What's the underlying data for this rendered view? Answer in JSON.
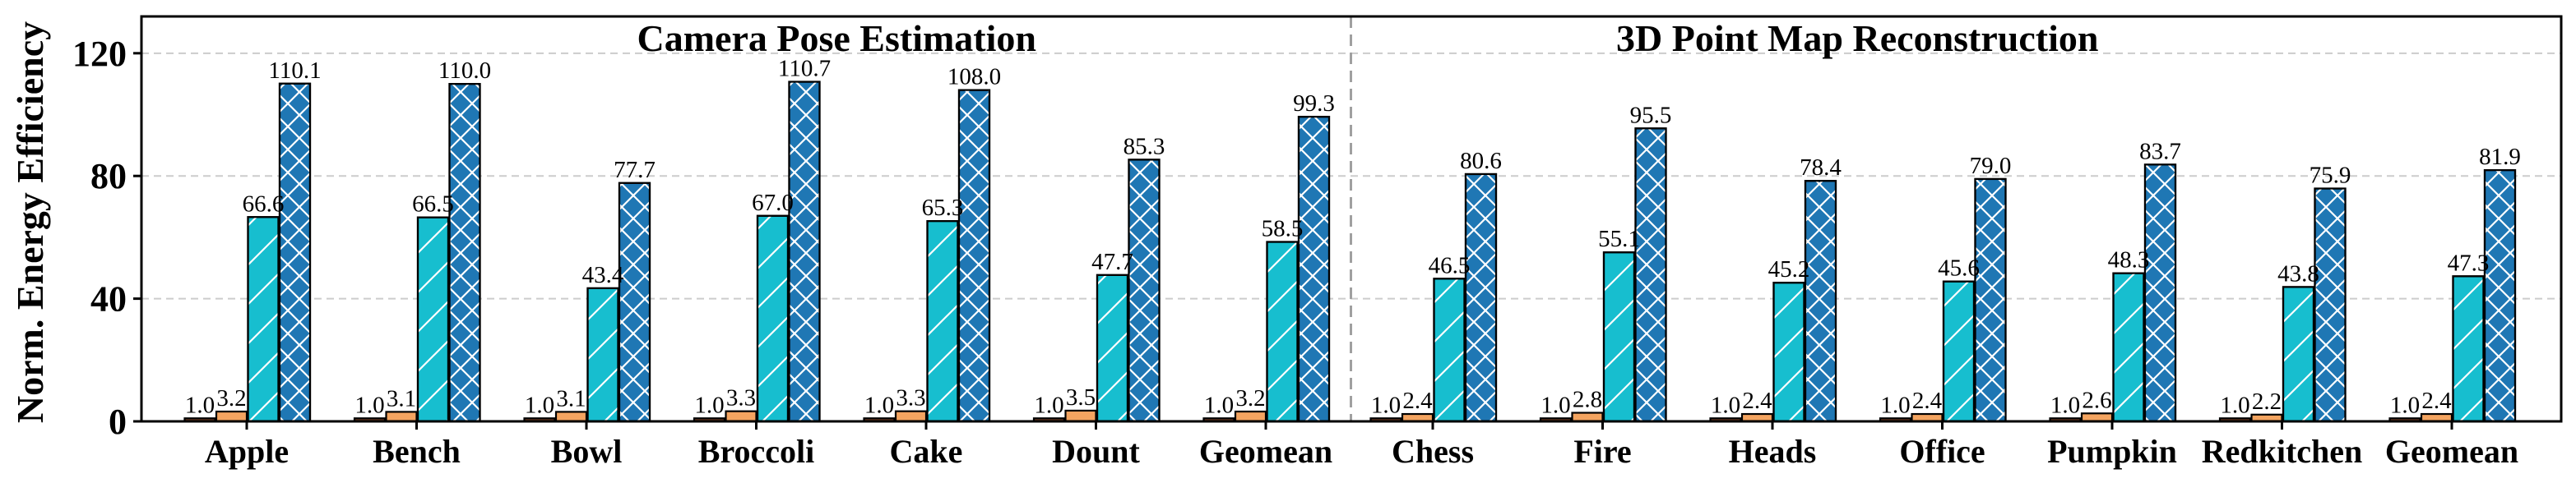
{
  "chart_data": {
    "type": "bar",
    "ylabel": "Norm. Energy Efficiency",
    "ylim": [
      0,
      132
    ],
    "yticks": [
      0,
      40,
      80,
      120
    ],
    "grid": true,
    "colors": {
      "series_1": "#6b3a1f",
      "series_2": "#f4a460",
      "series_3": "#17becf",
      "series_4": "#1f77b4",
      "edge": "#000000",
      "grid": "#cccccc",
      "divider": "#a0a0a0"
    },
    "hatches": [
      "none",
      "none",
      "slash",
      "cross"
    ],
    "panels": [
      {
        "title": "Camera Pose Estimation",
        "categories": [
          "Apple",
          "Bench",
          "Bowl",
          "Broccoli",
          "Cake",
          "Dount",
          "Geomean"
        ],
        "series": [
          {
            "values": [
              1.0,
              1.0,
              1.0,
              1.0,
              1.0,
              1.0,
              1.0
            ]
          },
          {
            "values": [
              3.2,
              3.1,
              3.1,
              3.3,
              3.3,
              3.5,
              3.2
            ]
          },
          {
            "values": [
              66.6,
              66.5,
              43.4,
              67.0,
              65.3,
              47.7,
              58.5
            ]
          },
          {
            "values": [
              110.1,
              110.0,
              77.7,
              110.7,
              108.0,
              85.3,
              99.3
            ]
          }
        ]
      },
      {
        "title": "3D Point Map Reconstruction",
        "categories": [
          "Chess",
          "Fire",
          "Heads",
          "Office",
          "Pumpkin",
          "Redkitchen",
          "Geomean"
        ],
        "series": [
          {
            "values": [
              1.0,
              1.0,
              1.0,
              1.0,
              1.0,
              1.0,
              1.0
            ]
          },
          {
            "values": [
              2.4,
              2.8,
              2.4,
              2.4,
              2.6,
              2.2,
              2.4
            ]
          },
          {
            "values": [
              46.5,
              55.1,
              45.2,
              45.6,
              48.3,
              43.8,
              47.3
            ]
          },
          {
            "values": [
              80.6,
              95.5,
              78.4,
              79.0,
              83.7,
              75.9,
              81.9
            ]
          }
        ]
      }
    ]
  }
}
